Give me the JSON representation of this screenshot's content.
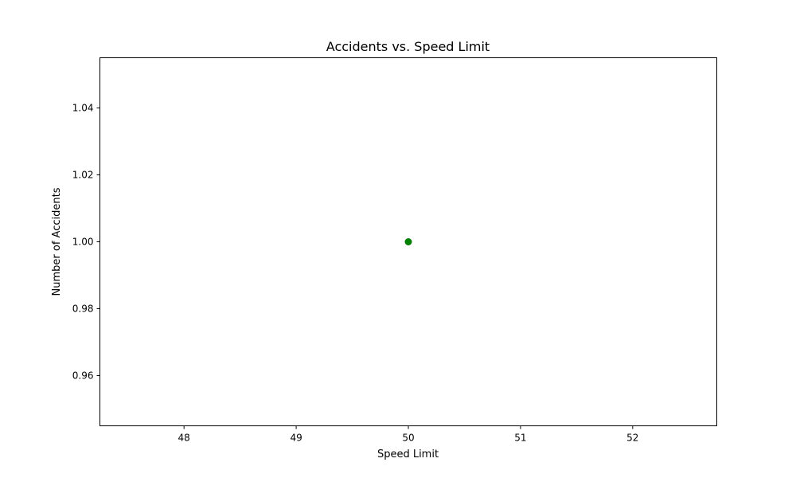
{
  "chart_data": {
    "type": "scatter",
    "title": "Accidents vs. Speed Limit",
    "xlabel": "Speed Limit",
    "ylabel": "Number of Accidents",
    "xlim": [
      47.25,
      52.75
    ],
    "ylim": [
      0.945,
      1.055
    ],
    "xticks": [
      48,
      49,
      50,
      51,
      52
    ],
    "xtick_labels": [
      "48",
      "49",
      "50",
      "51",
      "52"
    ],
    "yticks": [
      0.96,
      0.98,
      1.0,
      1.02,
      1.04
    ],
    "ytick_labels": [
      "0.96",
      "0.98",
      "1.00",
      "1.02",
      "1.04"
    ],
    "grid": false,
    "series": [
      {
        "color": "#008000",
        "points": [
          {
            "x": 50,
            "y": 1.0
          }
        ]
      }
    ]
  }
}
